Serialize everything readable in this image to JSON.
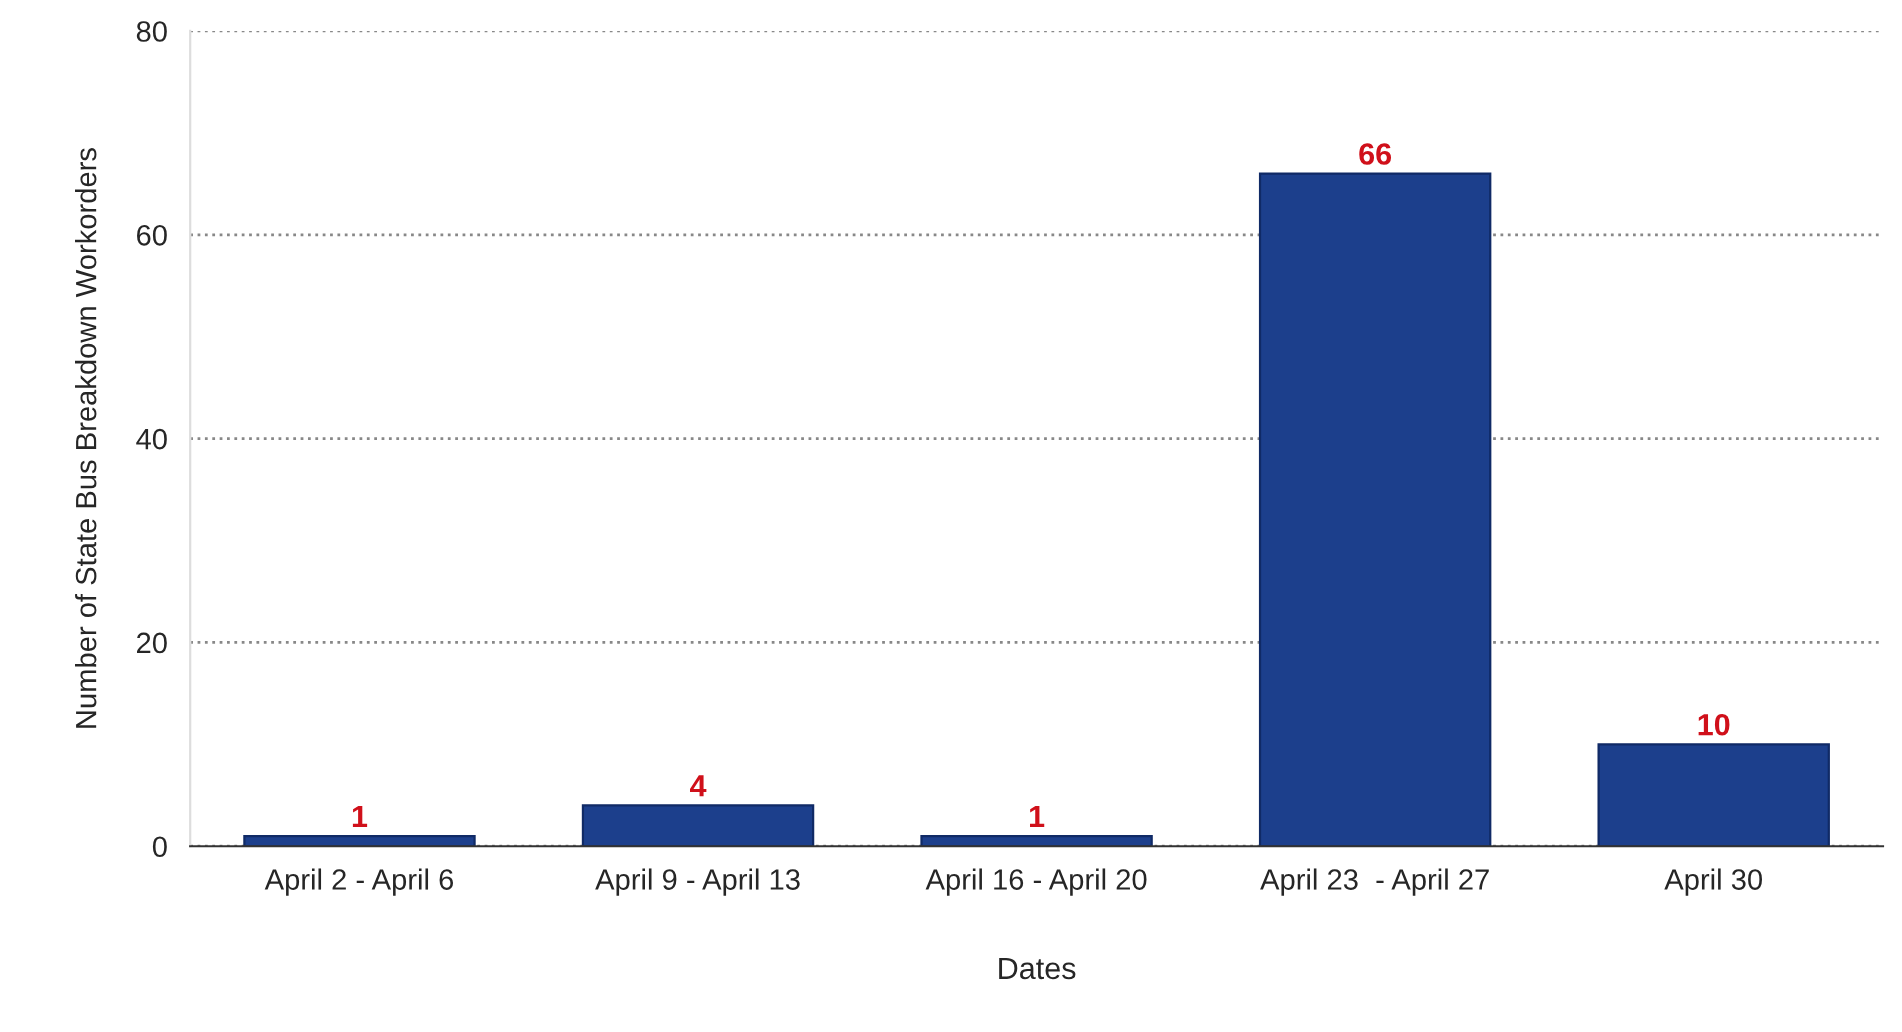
{
  "chart_data": {
    "type": "bar",
    "xlabel": "Dates",
    "ylabel": "Number of State Bus Breakdown Workorders",
    "categories": [
      "April 2 - April 6",
      "April 9 - April 13",
      "April 16 - April 20",
      "April 23  - April 27",
      "April 30"
    ],
    "values": [
      1,
      4,
      1,
      66,
      10
    ],
    "color": "#1c3f8c",
    "ylim": [
      0,
      80
    ],
    "yticks": [
      0,
      20,
      40,
      60,
      80
    ],
    "grid": "y",
    "data_labels": true,
    "legend": false
  }
}
